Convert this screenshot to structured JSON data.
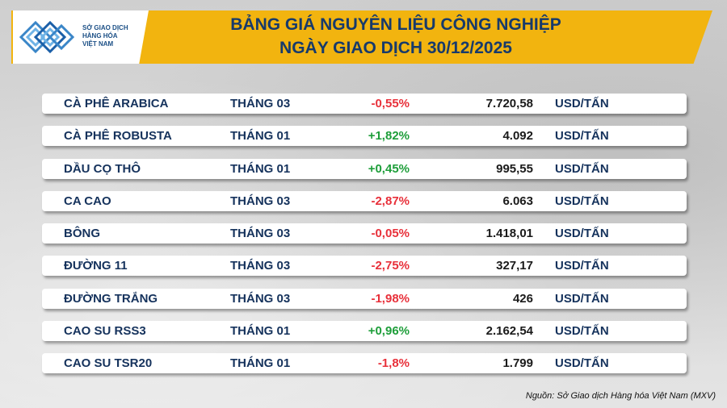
{
  "header": {
    "logo_lines": [
      "SỞ GIAO DỊCH",
      "HÀNG HÓA",
      "VIỆT NAM"
    ],
    "title_line1": "BẢNG GIÁ NGUYÊN LIỆU CÔNG NGHIỆP",
    "title_line2": "NGÀY GIAO DỊCH 30/12/2025",
    "accent_color": "#f2b40f"
  },
  "rows": [
    {
      "name": "CÀ PHÊ ARABICA",
      "month": "THÁNG 03",
      "change": "-0,55%",
      "direction": "down",
      "price": "7.720,58",
      "unit": "USD/TẤN"
    },
    {
      "name": "CÀ PHÊ ROBUSTA",
      "month": "THÁNG 01",
      "change": "+1,82%",
      "direction": "up",
      "price": "4.092",
      "unit": "USD/TẤN"
    },
    {
      "name": "DẦU CỌ THÔ",
      "month": "THÁNG 01",
      "change": "+0,45%",
      "direction": "up",
      "price": "995,55",
      "unit": "USD/TẤN"
    },
    {
      "name": "CA CAO",
      "month": "THÁNG 03",
      "change": "-2,87%",
      "direction": "down",
      "price": "6.063",
      "unit": "USD/TẤN"
    },
    {
      "name": "BÔNG",
      "month": "THÁNG 03",
      "change": "-0,05%",
      "direction": "down",
      "price": "1.418,01",
      "unit": "USD/TẤN"
    },
    {
      "name": "ĐƯỜNG 11",
      "month": "THÁNG 03",
      "change": "-2,75%",
      "direction": "down",
      "price": "327,17",
      "unit": "USD/TẤN"
    },
    {
      "name": "ĐƯỜNG TRẮNG",
      "month": "THÁNG 03",
      "change": "-1,98%",
      "direction": "down",
      "price": "426",
      "unit": "USD/TẤN"
    },
    {
      "name": "CAO SU RSS3",
      "month": "THÁNG 01",
      "change": "+0,96%",
      "direction": "up",
      "price": "2.162,54",
      "unit": "USD/TẤN"
    },
    {
      "name": "CAO SU TSR20",
      "month": "THÁNG 01",
      "change": "-1,8%",
      "direction": "down",
      "price": "1.799",
      "unit": "USD/TẤN"
    }
  ],
  "colors": {
    "positive": "#1e9e3a",
    "negative": "#e8303a",
    "text": "#15325c"
  },
  "source": "Nguồn: Sở Giao dịch Hàng hóa Việt Nam (MXV)"
}
